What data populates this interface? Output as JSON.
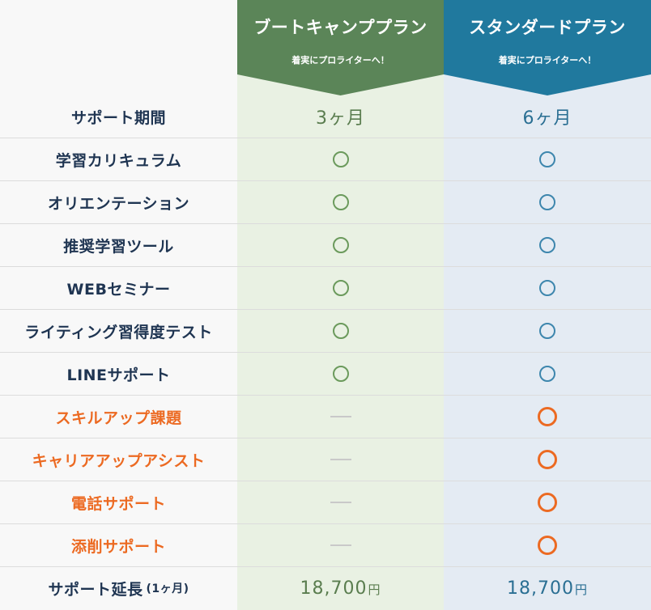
{
  "plans": {
    "bootcamp": {
      "name": "ブートキャンププラン",
      "subtitle": "着実にプロライターへ！",
      "color": "#5b8558"
    },
    "standard": {
      "name": "スタンダードプラン",
      "subtitle": "着実にプロライターへ！",
      "color": "#20799e"
    }
  },
  "rows": [
    {
      "label": "サポート期間",
      "bootcamp": "3ヶ月",
      "standard": "6ヶ月"
    },
    {
      "label": "学習カリキュラム",
      "bootcamp": "circle",
      "standard": "circle"
    },
    {
      "label": "オリエンテーション",
      "bootcamp": "circle",
      "standard": "circle"
    },
    {
      "label": "推奨学習ツール",
      "bootcamp": "circle",
      "standard": "circle"
    },
    {
      "label": "WEBセミナー",
      "bootcamp": "circle",
      "standard": "circle"
    },
    {
      "label": "ライティング習得度テスト",
      "bootcamp": "circle",
      "standard": "circle"
    },
    {
      "label": "LINEサポート",
      "bootcamp": "circle",
      "standard": "circle"
    },
    {
      "label": "スキルアップ課題",
      "bootcamp": "dash",
      "standard": "circle",
      "highlight": true
    },
    {
      "label": "キャリアアップアシスト",
      "bootcamp": "dash",
      "standard": "circle",
      "highlight": true
    },
    {
      "label": "電話サポート",
      "bootcamp": "dash",
      "standard": "circle",
      "highlight": true
    },
    {
      "label": "添削サポート",
      "bootcamp": "dash",
      "standard": "circle",
      "highlight": true
    }
  ],
  "extension": {
    "label": "サポート延長",
    "label_note": "(1ヶ月)",
    "bootcamp_price": "18,700",
    "standard_price": "18,700",
    "currency": "円"
  }
}
